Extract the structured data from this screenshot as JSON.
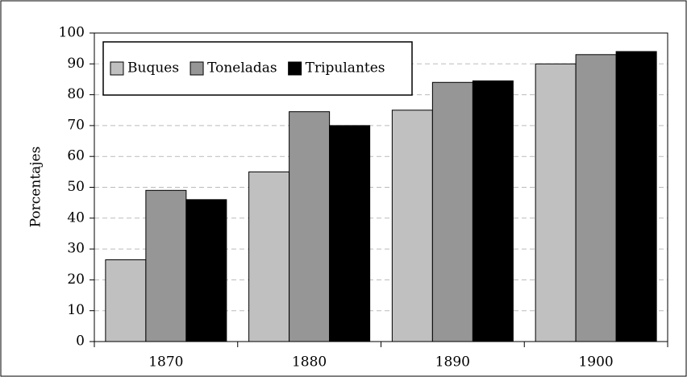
{
  "chart_data": {
    "type": "bar",
    "y_label": "Porcentajes",
    "categories": [
      "1870",
      "1880",
      "1890",
      "1900"
    ],
    "series": [
      {
        "name": "Buques",
        "color": "#c0c0c0",
        "values": [
          26.5,
          55,
          75,
          90
        ]
      },
      {
        "name": "Toneladas",
        "color": "#969696",
        "values": [
          49,
          74.5,
          84,
          93
        ]
      },
      {
        "name": "Tripulantes",
        "color": "#000000",
        "values": [
          46,
          70,
          84.5,
          94
        ]
      }
    ],
    "ylim": [
      0,
      100
    ],
    "yticks": [
      0,
      10,
      20,
      30,
      40,
      50,
      60,
      70,
      80,
      90,
      100
    ],
    "grid": true,
    "legend": "upper-left"
  }
}
